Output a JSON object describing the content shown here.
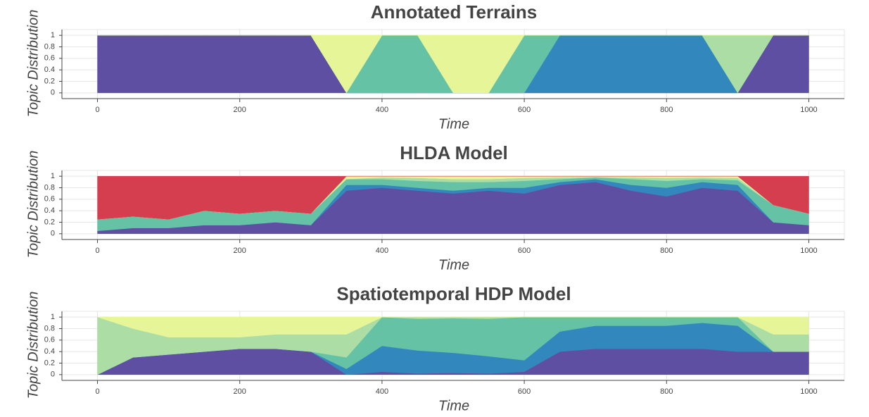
{
  "chart_data": [
    {
      "type": "area",
      "title": "Annotated Terrains",
      "x_label": "Time",
      "y_label": "Topic Distribution",
      "x": [
        0,
        50,
        100,
        150,
        200,
        250,
        300,
        350,
        400,
        450,
        500,
        550,
        600,
        650,
        700,
        750,
        800,
        850,
        900,
        950,
        1000
      ],
      "series": [
        {
          "color": "#5e4fa2",
          "values": [
            1,
            1,
            1,
            1,
            1,
            1,
            1,
            0,
            0,
            0,
            0,
            0,
            0,
            0,
            0,
            0,
            0,
            0,
            0,
            1,
            1
          ]
        },
        {
          "color": "#3288bd",
          "values": [
            0,
            0,
            0,
            0,
            0,
            0,
            0,
            0,
            0,
            0,
            0,
            0,
            0,
            1,
            1,
            1,
            1,
            1,
            0,
            0,
            0
          ]
        },
        {
          "color": "#66c2a5",
          "values": [
            0,
            0,
            0,
            0,
            0,
            0,
            0,
            0,
            1,
            1,
            0,
            0,
            1,
            0,
            0,
            0,
            0,
            0,
            0,
            0,
            0
          ]
        },
        {
          "color": "#abdda4",
          "values": [
            0,
            0,
            0,
            0,
            0,
            0,
            0,
            0,
            0,
            0,
            0,
            0,
            0,
            0,
            0,
            0,
            0,
            0,
            1,
            0,
            0
          ]
        },
        {
          "color": "#e6f598",
          "values": [
            0,
            0,
            0,
            0,
            0,
            0,
            0,
            1,
            0,
            0,
            1,
            1,
            0,
            0,
            0,
            0,
            0,
            0,
            0,
            0,
            0
          ]
        }
      ],
      "xlim": [
        -50,
        1050
      ],
      "ylim": [
        -0.1,
        1.1
      ],
      "xticks": [
        0,
        200,
        400,
        600,
        800,
        1000
      ],
      "yticks": [
        0,
        0.2,
        0.4,
        0.6,
        0.8,
        1
      ],
      "grid": true
    },
    {
      "type": "area",
      "title": "HLDA Model",
      "x_label": "Time",
      "y_label": "Topic Distribution",
      "x": [
        0,
        50,
        100,
        150,
        200,
        250,
        300,
        350,
        400,
        450,
        500,
        550,
        600,
        650,
        700,
        750,
        800,
        850,
        900,
        950,
        1000
      ],
      "series": [
        {
          "color": "#5e4fa2",
          "values": [
            0.05,
            0.1,
            0.1,
            0.15,
            0.15,
            0.2,
            0.15,
            0.75,
            0.8,
            0.75,
            0.7,
            0.75,
            0.7,
            0.85,
            0.9,
            0.75,
            0.65,
            0.8,
            0.75,
            0.2,
            0.15
          ]
        },
        {
          "color": "#3288bd",
          "values": [
            0,
            0,
            0,
            0,
            0,
            0,
            0,
            0.1,
            0.05,
            0.05,
            0.05,
            0.05,
            0.1,
            0.05,
            0.05,
            0.1,
            0.15,
            0.1,
            0.1,
            0,
            0
          ]
        },
        {
          "color": "#66c2a5",
          "values": [
            0.2,
            0.2,
            0.15,
            0.25,
            0.2,
            0.2,
            0.2,
            0.1,
            0.1,
            0.12,
            0.15,
            0.1,
            0.12,
            0.05,
            0.03,
            0.1,
            0.12,
            0.05,
            0.08,
            0.3,
            0.2
          ]
        },
        {
          "color": "#abdda4",
          "values": [
            0,
            0,
            0,
            0,
            0,
            0,
            0,
            0,
            0.03,
            0.05,
            0.05,
            0.05,
            0.05,
            0.03,
            0.01,
            0.03,
            0.05,
            0.03,
            0.04,
            0,
            0
          ]
        },
        {
          "color": "#e6f598",
          "values": [
            0,
            0,
            0,
            0,
            0,
            0,
            0,
            0.05,
            0.02,
            0.03,
            0.05,
            0.05,
            0.03,
            0.02,
            0.01,
            0.02,
            0.03,
            0.02,
            0.03,
            0,
            0
          ]
        },
        {
          "color": "#d53e4f",
          "values": [
            0.75,
            0.7,
            0.75,
            0.6,
            0.65,
            0.6,
            0.65,
            0,
            0,
            0,
            0,
            0,
            0,
            0,
            0,
            0,
            0,
            0,
            0,
            0.5,
            0.65
          ]
        }
      ],
      "xlim": [
        -50,
        1050
      ],
      "ylim": [
        -0.1,
        1.1
      ],
      "xticks": [
        0,
        200,
        400,
        600,
        800,
        1000
      ],
      "yticks": [
        0,
        0.2,
        0.4,
        0.6,
        0.8,
        1
      ],
      "grid": true
    },
    {
      "type": "area",
      "title": "Spatiotemporal HDP Model",
      "x_label": "Time",
      "y_label": "Topic Distribution",
      "x": [
        0,
        50,
        100,
        150,
        200,
        250,
        300,
        350,
        400,
        450,
        500,
        550,
        600,
        650,
        700,
        750,
        800,
        850,
        900,
        950,
        1000
      ],
      "series": [
        {
          "color": "#5e4fa2",
          "values": [
            0,
            0.3,
            0.35,
            0.4,
            0.45,
            0.45,
            0.4,
            0,
            0.05,
            0.02,
            0.03,
            0.02,
            0.05,
            0.4,
            0.45,
            0.45,
            0.45,
            0.45,
            0.4,
            0.4,
            0.4
          ]
        },
        {
          "color": "#3288bd",
          "values": [
            0,
            0,
            0,
            0,
            0,
            0,
            0,
            0.1,
            0.45,
            0.4,
            0.35,
            0.3,
            0.2,
            0.35,
            0.4,
            0.4,
            0.4,
            0.45,
            0.45,
            0,
            0
          ]
        },
        {
          "color": "#66c2a5",
          "values": [
            0,
            0,
            0,
            0,
            0,
            0,
            0,
            0.2,
            0.5,
            0.55,
            0.6,
            0.65,
            0.75,
            0.25,
            0.15,
            0.15,
            0.15,
            0.1,
            0.15,
            0,
            0
          ]
        },
        {
          "color": "#abdda4",
          "values": [
            1,
            0.5,
            0.3,
            0.25,
            0.2,
            0.25,
            0.3,
            0.4,
            0,
            0.03,
            0.02,
            0.03,
            0,
            0,
            0,
            0,
            0,
            0,
            0,
            0.3,
            0.3
          ]
        },
        {
          "color": "#e6f598",
          "values": [
            0,
            0.2,
            0.35,
            0.35,
            0.35,
            0.3,
            0.3,
            0.3,
            0,
            0,
            0,
            0,
            0,
            0,
            0,
            0,
            0,
            0,
            0,
            0.3,
            0.3
          ]
        }
      ],
      "xlim": [
        -50,
        1050
      ],
      "ylim": [
        -0.1,
        1.1
      ],
      "xticks": [
        0,
        200,
        400,
        600,
        800,
        1000
      ],
      "yticks": [
        0,
        0.2,
        0.4,
        0.6,
        0.8,
        1
      ],
      "grid": true
    }
  ]
}
